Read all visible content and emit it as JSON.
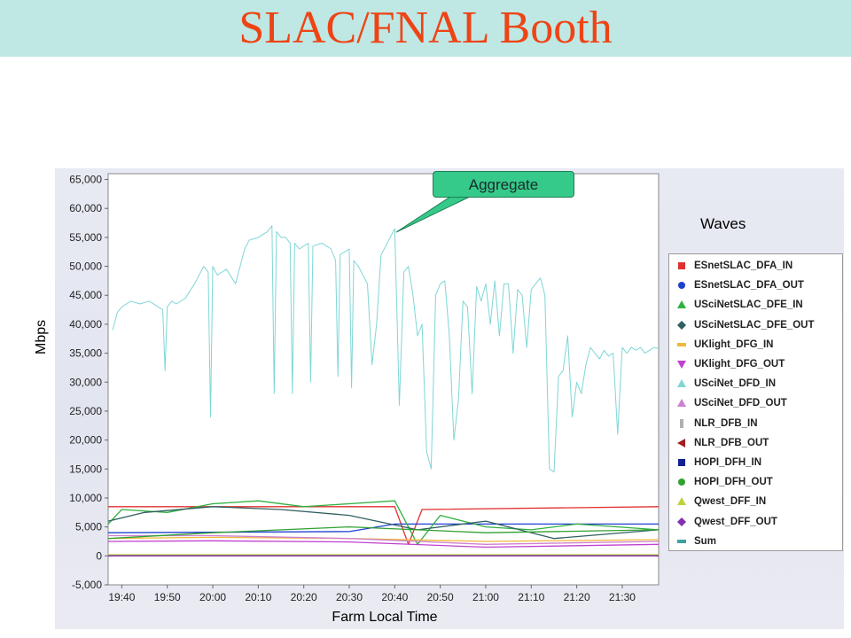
{
  "slide": {
    "title": "SLAC/FNAL Booth"
  },
  "callout": {
    "text": "Aggregate"
  },
  "legend_title": "Waves",
  "chart_data": {
    "type": "line",
    "ylabel": "Mbps",
    "xlabel": "Farm Local Time",
    "ylim": [
      -5000,
      66000
    ],
    "yticks": [
      -5000,
      0,
      5000,
      10000,
      15000,
      20000,
      25000,
      30000,
      35000,
      40000,
      45000,
      50000,
      55000,
      60000,
      65000
    ],
    "ytick_labels": [
      "-5,000",
      "0",
      "5,000",
      "10,000",
      "15,000",
      "20,000",
      "25,000",
      "30,000",
      "35,000",
      "40,000",
      "45,000",
      "50,000",
      "55,000",
      "60,000",
      "65,000"
    ],
    "xlim": [
      "19:37",
      "21:38"
    ],
    "xtick_labels": [
      "19:40",
      "19:50",
      "20:00",
      "20:10",
      "20:20",
      "20:30",
      "20:40",
      "20:50",
      "21:00",
      "21:10",
      "21:20",
      "21:30"
    ],
    "grid": true,
    "legend_position": "right",
    "series": [
      {
        "name": "USciNet_DFD_IN",
        "color": "#7fd6d6",
        "marker": "triangle-up",
        "x": [
          "19:38",
          "19:39",
          "19:40",
          "19:42",
          "19:44",
          "19:46",
          "19:48",
          "19:49",
          "19:49.5",
          "19:50",
          "19:51",
          "19:52",
          "19:54",
          "19:56",
          "19:58",
          "19:59",
          "19:59.5",
          "20:00",
          "20:01",
          "20:03",
          "20:05",
          "20:07",
          "20:08",
          "20:10",
          "20:12",
          "20:13",
          "20:13.5",
          "20:14",
          "20:15",
          "20:16",
          "20:17",
          "20:17.5",
          "20:18",
          "20:19",
          "20:21",
          "20:21.5",
          "20:22",
          "20:24",
          "20:26",
          "20:27",
          "20:27.5",
          "20:28",
          "20:30",
          "20:30.5",
          "20:31",
          "20:32",
          "20:34",
          "20:35",
          "20:36",
          "20:37",
          "20:38",
          "20:40",
          "20:41",
          "20:42",
          "20:43",
          "20:44",
          "20:45",
          "20:46",
          "20:47",
          "20:48",
          "20:49",
          "20:50",
          "20:51",
          "20:52",
          "20:53",
          "20:54",
          "20:55",
          "20:56",
          "20:57",
          "20:58",
          "20:59",
          "21:00",
          "21:01",
          "21:02",
          "21:03",
          "21:04",
          "21:05",
          "21:06",
          "21:07",
          "21:08",
          "21:09",
          "21:10",
          "21:11",
          "21:12",
          "21:13",
          "21:14",
          "21:15",
          "21:16",
          "21:17",
          "21:18",
          "21:19",
          "21:20",
          "21:21",
          "21:22",
          "21:23",
          "21:24",
          "21:25",
          "21:26",
          "21:27",
          "21:28",
          "21:29",
          "21:30",
          "21:31",
          "21:32",
          "21:33",
          "21:34",
          "21:35",
          "21:36",
          "21:37",
          "21:38"
        ],
        "values": [
          39000,
          42000,
          43000,
          44000,
          43500,
          44000,
          43000,
          42500,
          32000,
          43000,
          44000,
          43500,
          44500,
          47000,
          50000,
          49000,
          24000,
          50000,
          48500,
          49500,
          47000,
          53000,
          54500,
          55000,
          56000,
          57000,
          28000,
          56000,
          55000,
          55000,
          54000,
          28000,
          54000,
          53000,
          54000,
          30000,
          53500,
          54000,
          53000,
          51000,
          31000,
          52000,
          53000,
          29000,
          51000,
          50000,
          47000,
          33000,
          40000,
          52000,
          53500,
          56500,
          26000,
          49000,
          50000,
          45000,
          38000,
          40000,
          18000,
          15000,
          45000,
          47000,
          47500,
          38000,
          20000,
          27000,
          44000,
          43000,
          28000,
          46500,
          44000,
          47000,
          40000,
          47500,
          38000,
          47000,
          47000,
          35000,
          46000,
          45000,
          36000,
          46000,
          47000,
          48000,
          45000,
          15000,
          14500,
          31000,
          32000,
          38000,
          24000,
          30000,
          28000,
          33000,
          36000,
          35000,
          34000,
          35500,
          34500,
          35000,
          21000,
          36000,
          35000,
          36000,
          35500,
          36000,
          35000,
          35500,
          36000,
          35800
        ]
      },
      {
        "name": "ESnetSLAC_DFA_IN",
        "color": "#e03030",
        "marker": "square",
        "x": [
          "19:37",
          "20:40",
          "20:43",
          "20:46",
          "21:38"
        ],
        "values": [
          8500,
          8500,
          2000,
          8000,
          8500
        ]
      },
      {
        "name": "ESnetSLAC_DFA_OUT",
        "color": "#2040d0",
        "marker": "circle",
        "x": [
          "19:37",
          "20:30",
          "20:40",
          "21:00",
          "21:38"
        ],
        "values": [
          4000,
          4200,
          5500,
          5500,
          5500
        ]
      },
      {
        "name": "USciNetSLAC_DFE_IN",
        "color": "#30b040",
        "marker": "triangle-up",
        "x": [
          "19:37",
          "19:40",
          "19:50",
          "20:00",
          "20:10",
          "20:20",
          "20:30",
          "20:40",
          "20:45",
          "20:50",
          "21:00",
          "21:10",
          "21:20",
          "21:38"
        ],
        "values": [
          5500,
          8000,
          7500,
          9000,
          9500,
          8500,
          9000,
          9500,
          2000,
          7000,
          5000,
          4500,
          5500,
          4500
        ]
      },
      {
        "name": "USciNetSLAC_DFE_OUT",
        "color": "#306060",
        "marker": "diamond",
        "x": [
          "19:37",
          "19:45",
          "20:00",
          "20:15",
          "20:30",
          "20:45",
          "21:00",
          "21:15",
          "21:38"
        ],
        "values": [
          6000,
          7500,
          8500,
          8000,
          7000,
          4500,
          6000,
          3000,
          4500
        ]
      },
      {
        "name": "UKlight_DFG_IN",
        "color": "#f0b838",
        "marker": "dash",
        "x": [
          "19:37",
          "20:00",
          "20:30",
          "21:00",
          "21:38"
        ],
        "values": [
          3000,
          3200,
          3000,
          2500,
          2800
        ]
      },
      {
        "name": "UKlight_DFG_OUT",
        "color": "#c040d0",
        "marker": "triangle-down",
        "x": [
          "19:37",
          "20:00",
          "20:30",
          "21:00",
          "21:38"
        ],
        "values": [
          2500,
          2600,
          2400,
          1500,
          2000
        ]
      },
      {
        "name": "USciNet_DFD_IN",
        "color": "#7fd6d6",
        "marker": "triangle-up",
        "x": [],
        "values": []
      },
      {
        "name": "USciNet_DFD_OUT",
        "color": "#d080d0",
        "marker": "triangle-up",
        "x": [
          "19:37",
          "20:00",
          "20:30",
          "21:00",
          "21:38"
        ],
        "values": [
          3500,
          3500,
          3000,
          2000,
          2500
        ]
      },
      {
        "name": "NLR_DFB_IN",
        "color": "#b0b0b0",
        "marker": "bar",
        "x": [
          "19:37",
          "21:38"
        ],
        "values": [
          100,
          100
        ]
      },
      {
        "name": "NLR_DFB_OUT",
        "color": "#a02020",
        "marker": "triangle-left",
        "x": [
          "19:37",
          "21:38"
        ],
        "values": [
          0,
          0
        ]
      },
      {
        "name": "HOPI_DFH_IN",
        "color": "#102090",
        "marker": "square",
        "x": [
          "19:37",
          "21:38"
        ],
        "values": [
          0,
          0
        ]
      },
      {
        "name": "HOPI_DFH_OUT",
        "color": "#30a030",
        "marker": "circle",
        "x": [
          "19:37",
          "20:00",
          "20:30",
          "21:00",
          "21:38"
        ],
        "values": [
          3000,
          4000,
          5000,
          4000,
          4500
        ]
      },
      {
        "name": "Qwest_DFF_IN",
        "color": "#c0d040",
        "marker": "triangle-up",
        "x": [
          "19:37",
          "21:38"
        ],
        "values": [
          200,
          200
        ]
      },
      {
        "name": "Qwest_DFF_OUT",
        "color": "#8030b0",
        "marker": "diamond",
        "x": [
          "19:37",
          "21:38"
        ],
        "values": [
          0,
          0
        ]
      },
      {
        "name": "Sum",
        "color": "#40a0a0",
        "marker": "dash",
        "x": [],
        "values": []
      }
    ]
  },
  "legend": [
    {
      "label": "ESnetSLAC_DFA_IN",
      "color": "#e03030",
      "marker": "square"
    },
    {
      "label": "ESnetSLAC_DFA_OUT",
      "color": "#2040d0",
      "marker": "circle"
    },
    {
      "label": "USciNetSLAC_DFE_IN",
      "color": "#30b040",
      "marker": "triangle-up"
    },
    {
      "label": "USciNetSLAC_DFE_OUT",
      "color": "#306060",
      "marker": "diamond"
    },
    {
      "label": "UKlight_DFG_IN",
      "color": "#f0b838",
      "marker": "dash"
    },
    {
      "label": "UKlight_DFG_OUT",
      "color": "#c040d0",
      "marker": "triangle-down"
    },
    {
      "label": "USciNet_DFD_IN",
      "color": "#7fd6d6",
      "marker": "triangle-up"
    },
    {
      "label": "USciNet_DFD_OUT",
      "color": "#d080d0",
      "marker": "triangle-up"
    },
    {
      "label": "NLR_DFB_IN",
      "color": "#b0b0b0",
      "marker": "bar"
    },
    {
      "label": "NLR_DFB_OUT",
      "color": "#a02020",
      "marker": "triangle-left"
    },
    {
      "label": "HOPI_DFH_IN",
      "color": "#102090",
      "marker": "square"
    },
    {
      "label": "HOPI_DFH_OUT",
      "color": "#30a030",
      "marker": "circle"
    },
    {
      "label": "Qwest_DFF_IN",
      "color": "#c0d040",
      "marker": "triangle-up"
    },
    {
      "label": "Qwest_DFF_OUT",
      "color": "#8030b0",
      "marker": "diamond"
    },
    {
      "label": "Sum",
      "color": "#40a0a0",
      "marker": "dash"
    }
  ]
}
